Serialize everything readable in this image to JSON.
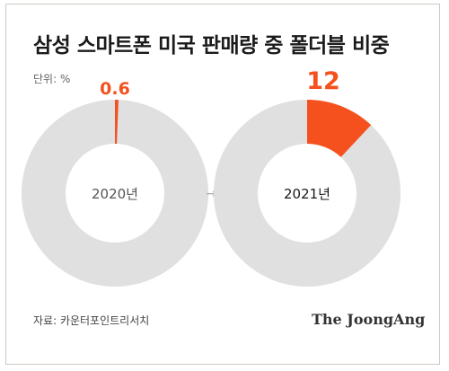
{
  "title": "삼성 스마트폰 미국 판매량 중 폴더블 비중",
  "unit": "단위: %",
  "source": "자료: 카운터포인트리서치",
  "brand": "The JoongAng",
  "arrow": "→",
  "colors": {
    "accent": "#f4511e",
    "track": "#e0e0e0",
    "center_text": "#333333"
  },
  "chart_data": [
    {
      "type": "pie",
      "label": "2020년",
      "value": 0.6,
      "value_label": "0.6",
      "total": 100
    },
    {
      "type": "pie",
      "label": "2021년",
      "value": 12,
      "value_label": "12",
      "total": 100
    }
  ]
}
